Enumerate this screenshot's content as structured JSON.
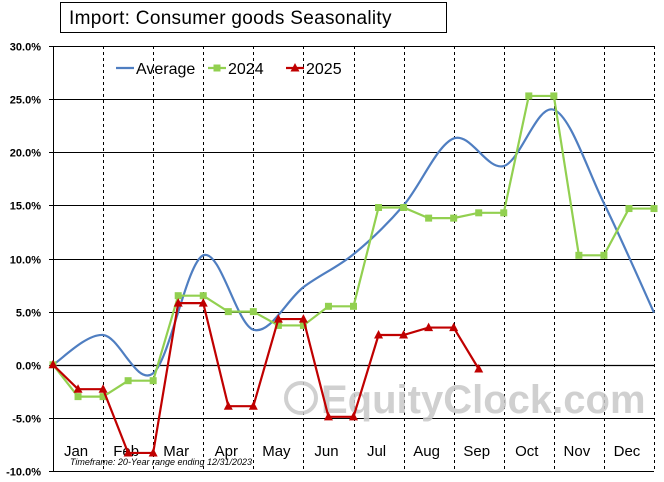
{
  "chart_data": {
    "type": "line",
    "title": "Import:  Consumer  goods Seasonality",
    "xlabel": "",
    "ylabel": "",
    "categories": [
      "Jan",
      "Feb",
      "Mar",
      "Apr",
      "May",
      "Jun",
      "Jul",
      "Aug",
      "Sep",
      "Oct",
      "Nov",
      "Dec"
    ],
    "yticks": [
      "30.0%",
      "25.0%",
      "20.0%",
      "15.0%",
      "10.0%",
      "5.0%",
      "0.0%",
      "-5.0%",
      "-10.0%"
    ],
    "ylim": [
      -10,
      30
    ],
    "grid": true,
    "legend_position": "top-left",
    "series": [
      {
        "name": "Average",
        "color": "#4f7ec1",
        "marker": "none",
        "x": [
          0,
          1,
          2,
          3,
          4,
          5,
          6,
          7,
          8,
          9,
          10,
          11,
          12
        ],
        "values": [
          0.0,
          2.8,
          -0.8,
          10.3,
          3.3,
          7.3,
          10.4,
          15.0,
          21.3,
          18.7,
          24.0,
          15.2,
          4.9
        ]
      },
      {
        "name": "2024",
        "color": "#92d050",
        "marker": "square",
        "x": [
          0,
          0.5,
          1,
          1.5,
          2,
          2.5,
          3,
          3.5,
          4,
          4.5,
          5,
          5.5,
          6,
          6.5,
          7,
          7.5,
          8,
          8.5,
          9,
          9.5,
          10,
          10.5,
          11,
          11.5,
          12
        ],
        "values": [
          0.0,
          -3.0,
          -3.0,
          -1.5,
          -1.5,
          6.5,
          6.5,
          5.0,
          5.0,
          3.7,
          3.7,
          5.5,
          5.5,
          14.8,
          14.8,
          13.8,
          13.8,
          14.3,
          14.3,
          25.3,
          25.3,
          10.3,
          10.3,
          14.7,
          14.7
        ]
      },
      {
        "name": "2025",
        "color": "#c00000",
        "marker": "triangle",
        "x": [
          0,
          0.5,
          1,
          1.5,
          2,
          2.5,
          3,
          3.5,
          4,
          4.5,
          5,
          5.5,
          6,
          6.5,
          7,
          7.5,
          8,
          8.5
        ],
        "values": [
          0.0,
          -2.3,
          -2.3,
          -8.3,
          -8.3,
          5.8,
          5.8,
          -3.9,
          -3.9,
          4.3,
          4.3,
          -4.9,
          -4.9,
          2.8,
          2.8,
          3.5,
          3.5,
          -0.4
        ]
      }
    ],
    "footnote": "Timeframe: 20-Year range ending 12/31/2023",
    "watermark": "© EquityClock.com"
  }
}
